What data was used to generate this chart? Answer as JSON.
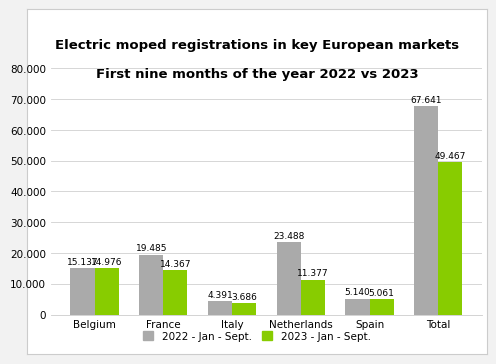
{
  "title_line1": "Electric moped registrations in key European markets",
  "title_line2": "First nine months of the year 2022 vs 2023",
  "categories": [
    "Belgium",
    "France",
    "Italy",
    "Netherlands",
    "Spain",
    "Total"
  ],
  "values_2022": [
    15137,
    19485,
    4391,
    23488,
    5140,
    67641
  ],
  "values_2023": [
    14976,
    14367,
    3686,
    11377,
    5061,
    49467
  ],
  "labels_2022": [
    "15.137",
    "19.485",
    "4.391",
    "23.488",
    "5.140",
    "67.641"
  ],
  "labels_2023": [
    "14.976",
    "14.367",
    "3.686",
    "11.377",
    "5.061",
    "49.467"
  ],
  "color_2022": "#aaaaaa",
  "color_2023": "#88cc00",
  "legend_2022": "2022 - Jan - Sept.",
  "legend_2023": "2023 - Jan - Sept.",
  "ylim": [
    0,
    84000
  ],
  "yticks": [
    0,
    10000,
    20000,
    30000,
    40000,
    50000,
    60000,
    70000,
    80000
  ],
  "ytick_labels": [
    "0",
    "10.000",
    "20.000",
    "30.000",
    "40.000",
    "50.000",
    "60.000",
    "70.000",
    "80.000"
  ],
  "bar_width": 0.35,
  "background_color": "#ffffff",
  "outer_background": "#f2f2f2",
  "title_fontsize": 9.5,
  "label_fontsize": 6.5,
  "tick_fontsize": 7.5,
  "legend_fontsize": 7.5,
  "grid_color": "#d0d0d0"
}
